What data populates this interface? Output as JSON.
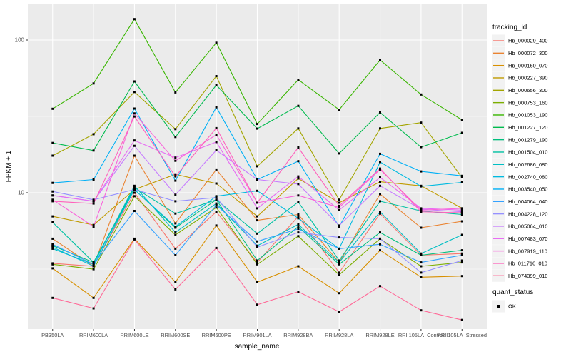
{
  "chart": {
    "xlabel": "sample_name",
    "ylabel": "FPKM + 1",
    "legend_title": "tracking_id",
    "quant_legend_title": "quant_status",
    "quant_ok_label": "OK",
    "panel_background": "#EBEBEB",
    "gridline_color": "#FFFFFF",
    "tick_label_color": "#4D4D4D",
    "marker_color": "#000000"
  },
  "chart_data": {
    "type": "line",
    "title": "",
    "xlabel": "sample_name",
    "ylabel": "FPKM + 1",
    "y_scale": "log10",
    "ylim": [
      1.2,
      175
    ],
    "y_major_ticks": [
      100,
      10
    ],
    "y_minor_gridlines": [
      31.623,
      3.162
    ],
    "grid": true,
    "legend_position": "right",
    "point_marker": "small-black-square",
    "categories": [
      "PB350LA",
      "RRIM600LA",
      "RRIM600LE",
      "RRIM600SE",
      "RRIM600PE",
      "RRIM901LA",
      "RRIM928BA",
      "RRIM928LA",
      "RRIM928LE",
      "RRII105LA_Control",
      "RRII105LA_Stressed"
    ],
    "series": [
      {
        "name": "Hb_000029_400",
        "color": "#F8766D",
        "values": [
          3.45,
          3.3,
          10.0,
          4.3,
          7.5,
          3.5,
          7.0,
          3.0,
          7.3,
          3.9,
          4.0
        ]
      },
      {
        "name": "Hb_000072_300",
        "color": "#EA8331",
        "values": [
          5.0,
          3.3,
          17.5,
          6.3,
          14.2,
          6.6,
          7.2,
          3.5,
          9.8,
          5.9,
          6.5
        ]
      },
      {
        "name": "Hb_000160_070",
        "color": "#D89000",
        "values": [
          3.2,
          2.05,
          5.0,
          2.6,
          6.1,
          2.6,
          3.3,
          2.2,
          4.2,
          2.8,
          2.85
        ]
      },
      {
        "name": "Hb_000227_390",
        "color": "#C09B00",
        "values": [
          7.0,
          6.15,
          10.5,
          13.2,
          11.5,
          7.0,
          12.4,
          8.6,
          11.8,
          11.1,
          7.9
        ]
      },
      {
        "name": "Hb_000656_300",
        "color": "#A3A500",
        "values": [
          17.5,
          24.2,
          45.7,
          26.1,
          58.1,
          14.9,
          26.4,
          9.0,
          26.4,
          28.8,
          12.6
        ]
      },
      {
        "name": "Hb_000753_160",
        "color": "#7CAE00",
        "values": [
          3.4,
          3.16,
          9.5,
          5.3,
          8.0,
          3.4,
          5.2,
          2.9,
          5.0,
          3.3,
          3.5
        ]
      },
      {
        "name": "Hb_001053_190",
        "color": "#39B600",
        "values": [
          35.5,
          52.0,
          137.0,
          45.4,
          96.0,
          28.2,
          55.0,
          35.0,
          74.0,
          44.0,
          30.0
        ]
      },
      {
        "name": "Hb_001227_120",
        "color": "#00BB4E",
        "values": [
          21.2,
          18.9,
          53.6,
          23.2,
          50.7,
          26.3,
          37.1,
          18.1,
          33.6,
          19.9,
          24.7
        ]
      },
      {
        "name": "Hb_001279_190",
        "color": "#00BF7D",
        "values": [
          4.5,
          3.5,
          10.5,
          5.9,
          9.0,
          3.6,
          6.0,
          3.4,
          5.5,
          3.9,
          4.2
        ]
      },
      {
        "name": "Hb_001504_010",
        "color": "#00C1A3",
        "values": [
          6.4,
          3.5,
          10.8,
          7.3,
          9.0,
          5.4,
          8.7,
          3.6,
          8.8,
          7.6,
          7.2
        ]
      },
      {
        "name": "Hb_002686_080",
        "color": "#00BFC4",
        "values": [
          4.3,
          3.4,
          11.1,
          5.5,
          8.5,
          4.5,
          6.2,
          3.5,
          7.5,
          4.0,
          5.3
        ]
      },
      {
        "name": "Hb_002740_080",
        "color": "#00BAE0",
        "values": [
          4.4,
          3.3,
          10.5,
          6.0,
          9.5,
          10.3,
          6.8,
          4.3,
          15.9,
          11.0,
          11.7
        ]
      },
      {
        "name": "Hb_003540_050",
        "color": "#00B0F6",
        "values": [
          11.6,
          12.2,
          35.6,
          12.0,
          36.3,
          12.2,
          16.1,
          6.0,
          18.0,
          13.8,
          12.9
        ]
      },
      {
        "name": "Hb_004064_040",
        "color": "#35A2FF",
        "values": [
          4.6,
          3.4,
          7.6,
          3.9,
          8.3,
          4.8,
          5.8,
          4.3,
          4.6,
          3.5,
          3.9
        ]
      },
      {
        "name": "Hb_004228_120",
        "color": "#9590FF",
        "values": [
          10.2,
          9.0,
          10.5,
          8.8,
          9.3,
          4.4,
          5.5,
          5.1,
          5.0,
          3.0,
          3.6
        ]
      },
      {
        "name": "Hb_005064_010",
        "color": "#C77CFF",
        "values": [
          9.6,
          8.8,
          20.3,
          9.7,
          19.0,
          12.2,
          11.4,
          6.1,
          11.1,
          7.8,
          7.5
        ]
      },
      {
        "name": "Hb_007483_070",
        "color": "#E76BF3",
        "values": [
          9.6,
          8.8,
          22.0,
          17.0,
          21.5,
          7.9,
          12.8,
          7.7,
          12.6,
          7.9,
          7.7
        ]
      },
      {
        "name": "Hb_007919_110",
        "color": "#FA62DB",
        "values": [
          9.0,
          6.0,
          33.1,
          16.2,
          24.0,
          8.6,
          9.6,
          8.0,
          14.2,
          7.7,
          7.9
        ]
      },
      {
        "name": "Hb_011716_010",
        "color": "#FF62BC",
        "values": [
          8.8,
          8.5,
          31.6,
          12.8,
          26.5,
          8.6,
          19.8,
          8.2,
          14.4,
          7.5,
          7.4
        ]
      },
      {
        "name": "Hb_074399_010",
        "color": "#FF6A98",
        "values": [
          2.05,
          1.75,
          4.95,
          2.33,
          4.35,
          1.85,
          2.25,
          1.66,
          2.45,
          1.7,
          1.47
        ]
      }
    ],
    "quant_status": {
      "title": "quant_status",
      "items": [
        {
          "label": "OK",
          "marker": "black-square"
        }
      ]
    }
  }
}
